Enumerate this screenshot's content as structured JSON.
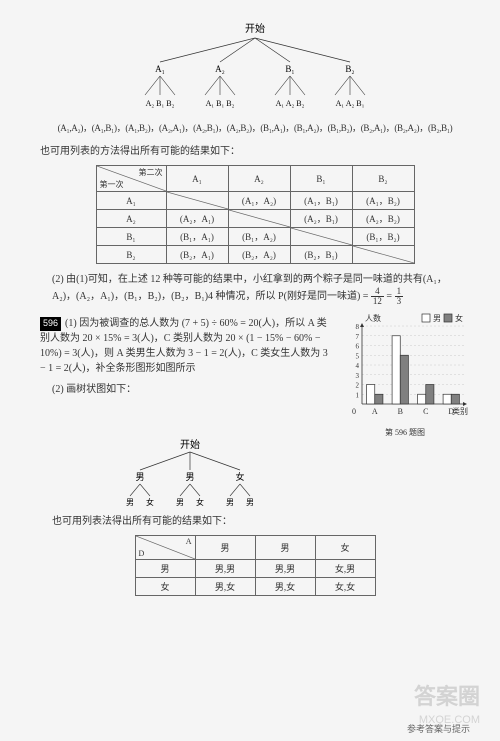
{
  "tree1": {
    "root": "开始",
    "level1": [
      "A₁",
      "A₂",
      "B₁",
      "B₂"
    ],
    "level2_each": [
      "A₂ B₁ B₂",
      "A₁ B₁ B₂",
      "A₁ A₂ B₂",
      "A₁ A₂ B₁"
    ],
    "outcomes": "(A₁,A₂)，(A₁,B₁)，(A₁,B₂)，(A₂,A₁)，(A₂,B₁)，(A₂,B₂)，(B₁,A₁)，(B₁,A₂)，(B₁,B₂)，(B₂,A₁)，(B₂,A₂)，(B₂,B₁)"
  },
  "text1": "也可用列表的方法得出所有可能的结果如下：",
  "table1": {
    "col_header_top": "第二次",
    "col_header_bot": "第一次",
    "cols": [
      "A₁",
      "A₂",
      "B₁",
      "B₂"
    ],
    "rows": [
      "A₁",
      "A₂",
      "B₁",
      "B₂"
    ],
    "cells": [
      [
        "",
        "(A₁，A₂)",
        "(A₁，B₁)",
        "(A₁，B₂)"
      ],
      [
        "(A₂，A₁)",
        "",
        "(A₂，B₁)",
        "(A₂，B₂)"
      ],
      [
        "(B₁，A₁)",
        "(B₁，A₂)",
        "",
        "(B₁，B₂)"
      ],
      [
        "(B₂，A₁)",
        "(B₂，A₂)",
        "(B₂，B₁)",
        ""
      ]
    ]
  },
  "text2": {
    "prefix": "(2) 由(1)可知，在上述 12 种等可能的结果中，小红拿到的两个粽子是同一味道的共有(A₁，A₂)，(A₂，A₁)，(B₁，B₂)，(B₂，B₁)4 种情况，所以 P(刚好是同一味道) = ",
    "frac1_num": "4",
    "frac1_den": "12",
    "eq": " = ",
    "frac2_num": "1",
    "frac2_den": "3"
  },
  "q596": {
    "num": "596",
    "line1": "(1) 因为被调查的总人数为 (7 + 5) ÷ 60% = 20(人)，所以 A 类别人数为 20 × 15% = 3(人)，C 类别人数为 20 × (1 − 15% − 60% − 10%) = 3(人)，则 A 类男生人数为 3 − 1 = 2(人)，C 类女生人数为 3 − 1 = 2(人)，补全条形图形如图所示",
    "line2": "(2) 画树状图如下："
  },
  "chart": {
    "ylabel": "人数",
    "legend": [
      "男",
      "女"
    ],
    "legend_colors": [
      "#ffffff",
      "#808080"
    ],
    "categories": [
      "A",
      "B",
      "C",
      "D"
    ],
    "male": [
      2,
      7,
      1,
      1
    ],
    "female": [
      1,
      5,
      2,
      1
    ],
    "yticks": [
      1,
      2,
      3,
      4,
      5,
      6,
      7,
      8
    ],
    "ylim": [
      0,
      8
    ],
    "xlabel": "类别",
    "caption": "第 596 题图",
    "grid_color": "#cccccc",
    "axis_color": "#333333",
    "bar_border": "#333333"
  },
  "tree2": {
    "root": "开始",
    "level1": [
      "男",
      "男",
      "女"
    ],
    "level2": [
      [
        "男",
        "女"
      ],
      [
        "男",
        "女"
      ],
      [
        "男",
        "男"
      ]
    ]
  },
  "text3": "也可用列表法得出所有可能的结果如下：",
  "table2": {
    "diag_top": "A",
    "diag_bot": "D",
    "cols": [
      "男",
      "男",
      "女"
    ],
    "rows": [
      "男",
      "女"
    ],
    "cells": [
      [
        "男,男",
        "男,男",
        "女,男"
      ],
      [
        "男,女",
        "男,女",
        "女,女"
      ]
    ]
  },
  "footer": "参考答案与提示",
  "watermark": "答案圈",
  "watermark_url": "MXQE.COM"
}
